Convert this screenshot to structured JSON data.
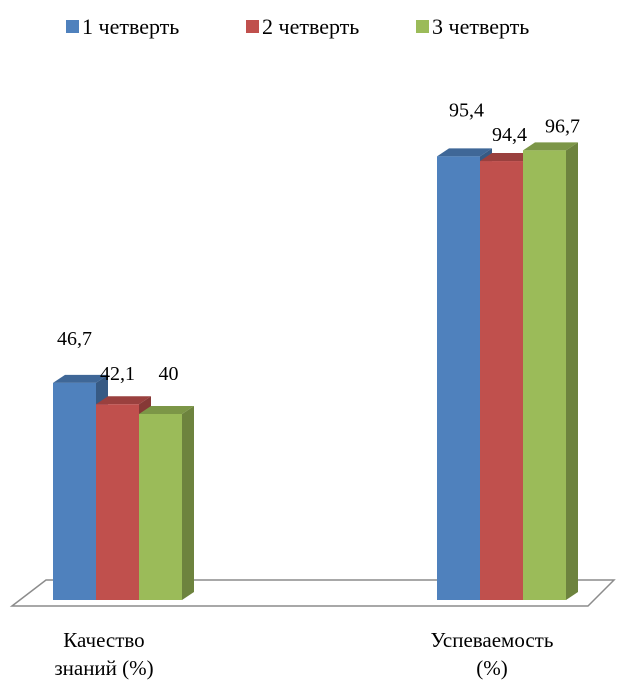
{
  "chart_data": {
    "type": "bar",
    "title": "",
    "xlabel": "",
    "ylabel": "",
    "ylim": [
      0,
      100
    ],
    "grid": false,
    "legend_position": "top",
    "categories": [
      [
        "Качество",
        "знаний (%)"
      ],
      [
        "Успеваемость",
        "(%)"
      ]
    ],
    "series": [
      {
        "name": "1 четверть",
        "color": "#4F81BD",
        "values": [
          46.7,
          95.4
        ],
        "labels": [
          "46,7",
          "95,4"
        ]
      },
      {
        "name": "2 четверть",
        "color": "#C0504D",
        "values": [
          42.1,
          94.4
        ],
        "labels": [
          "42,1",
          "94,4"
        ]
      },
      {
        "name": "3 четверть",
        "color": "#9BBB59",
        "values": [
          40,
          96.7
        ],
        "labels": [
          "40",
          "96,7"
        ]
      }
    ]
  }
}
